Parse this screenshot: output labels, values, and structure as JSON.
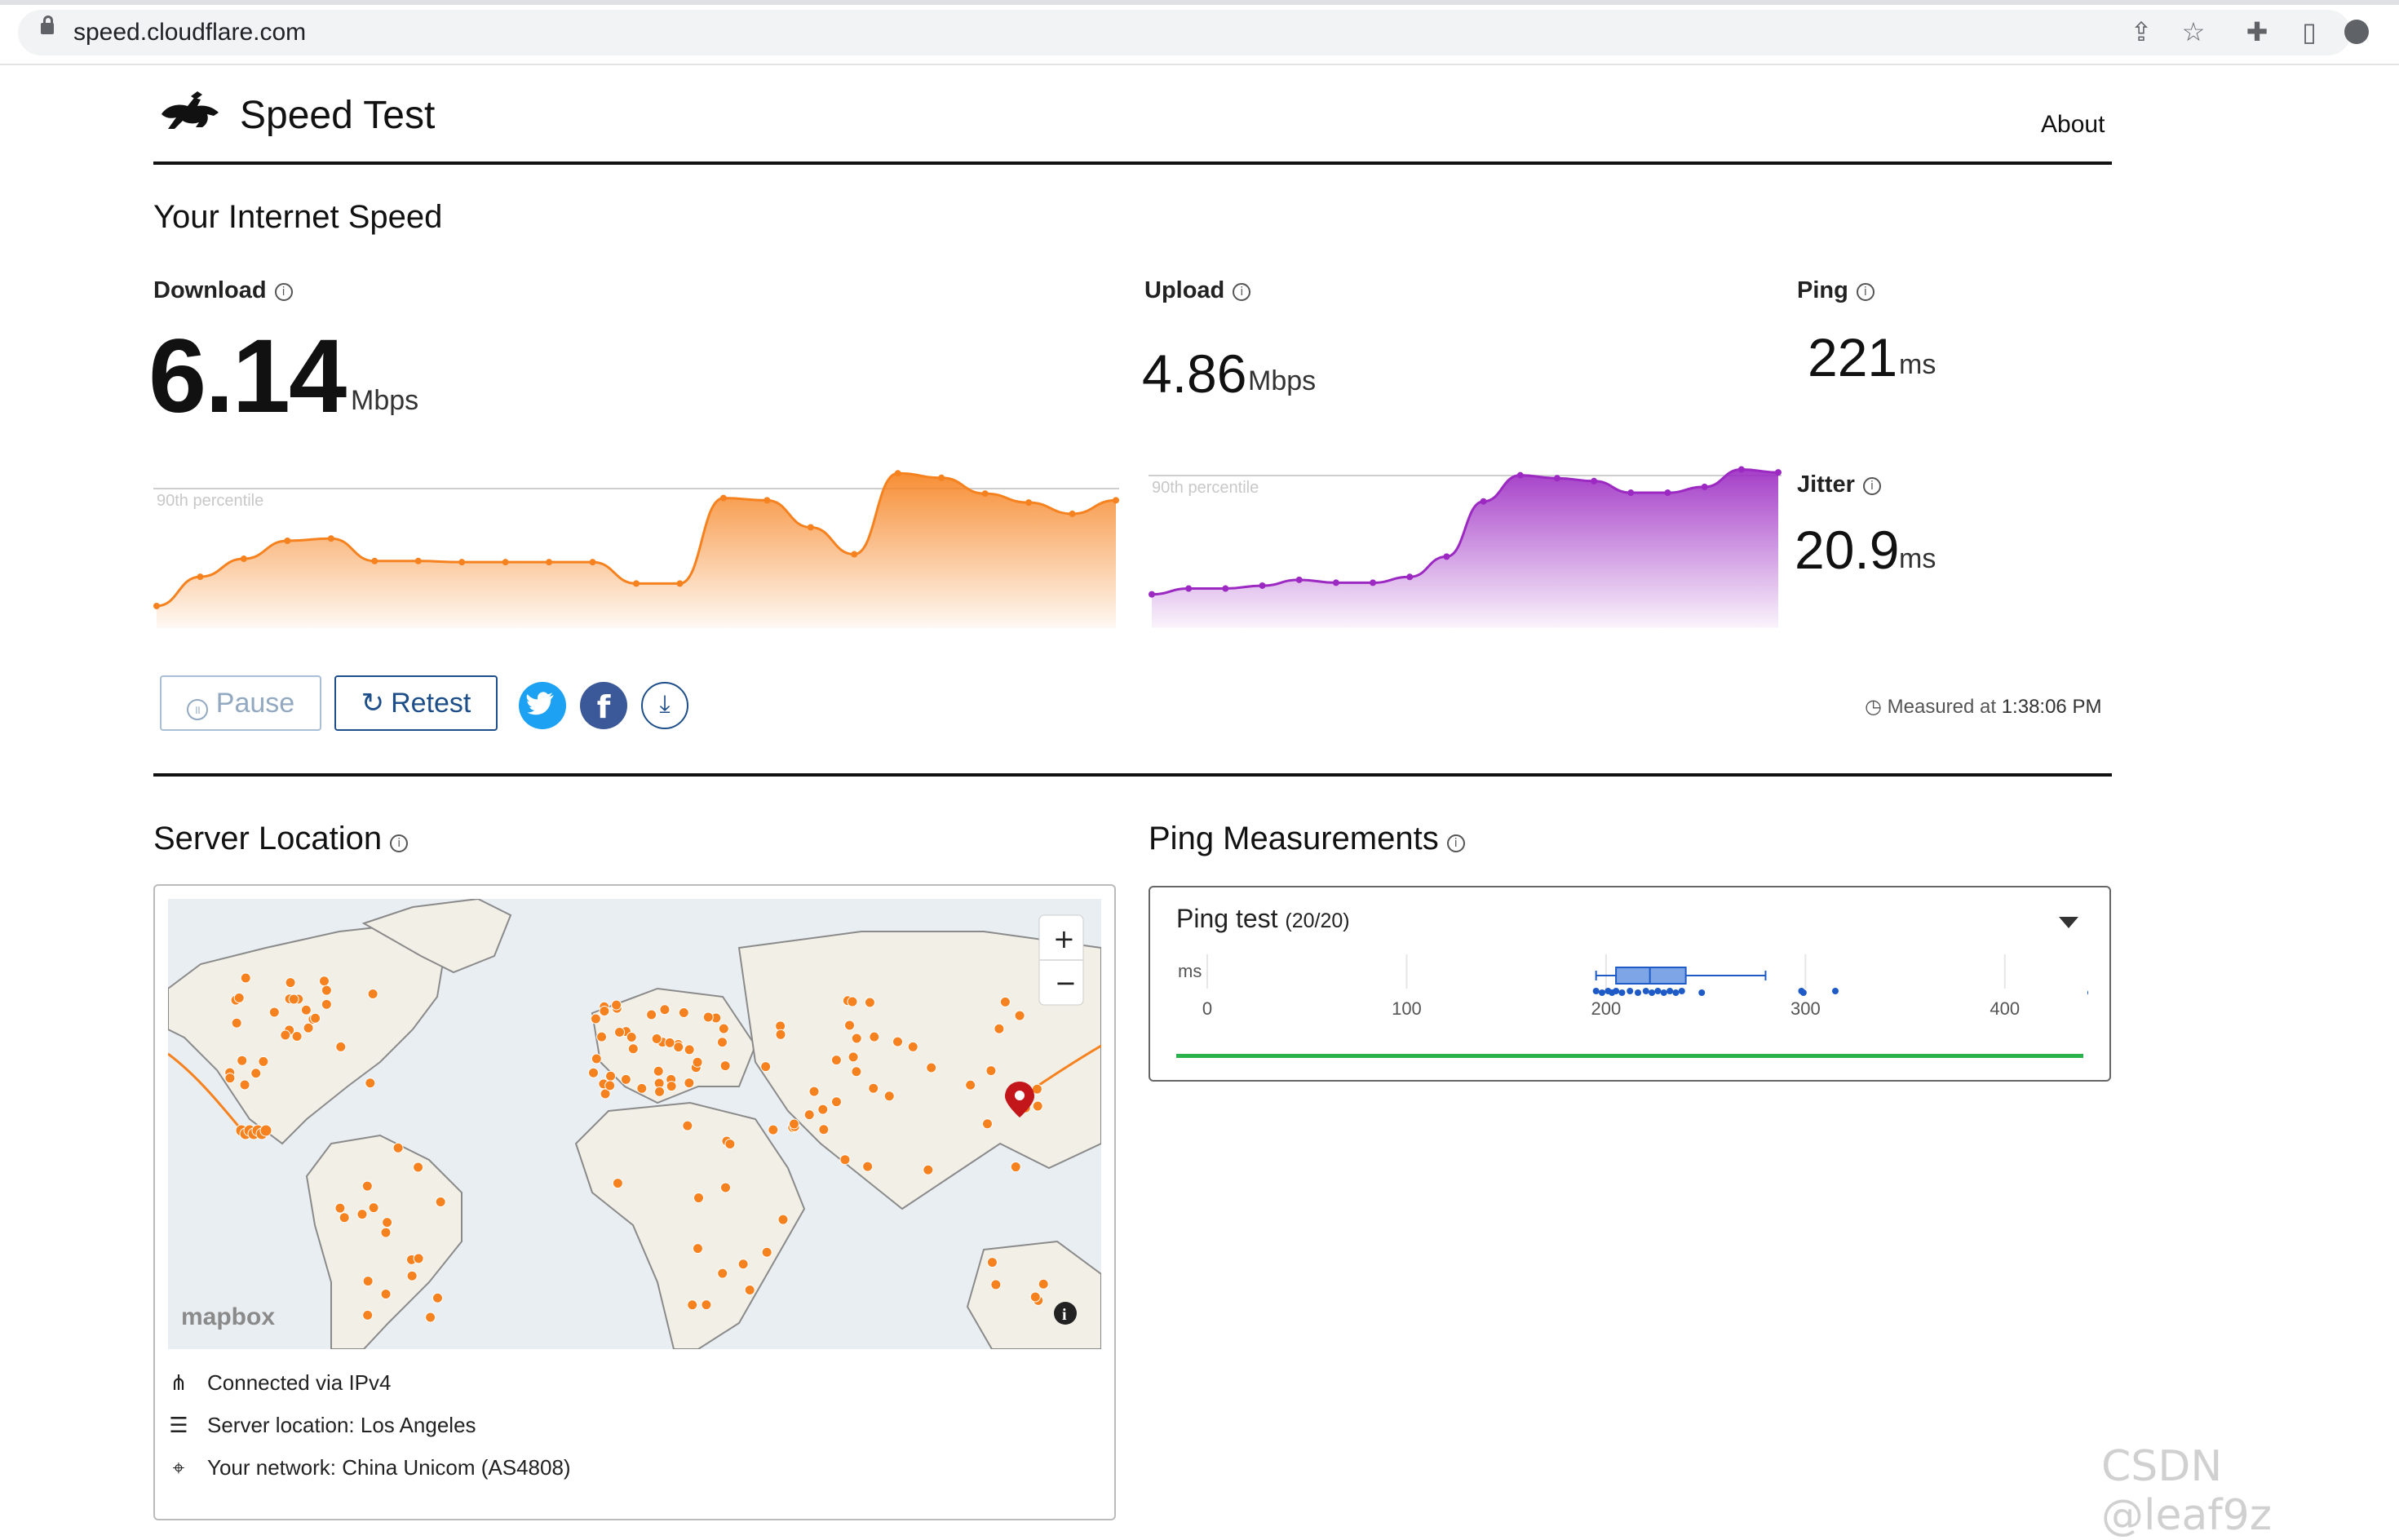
{
  "browser": {
    "url": "speed.cloudflare.com",
    "icons": [
      "share-icon",
      "star-icon",
      "extensions-icon",
      "sidepanel-icon",
      "profile-icon"
    ]
  },
  "header": {
    "title": "Speed Test",
    "about_link": "About"
  },
  "main": {
    "heading": "Your Internet Speed",
    "download": {
      "label": "Download",
      "value": "6.14",
      "unit": "Mbps",
      "percentile_label": "90th percentile"
    },
    "upload": {
      "label": "Upload",
      "value": "4.86",
      "unit": "Mbps",
      "percentile_label": "90th percentile"
    },
    "ping": {
      "label": "Ping",
      "value": "221",
      "unit": "ms"
    },
    "jitter": {
      "label": "Jitter",
      "value": "20.9",
      "unit": "ms"
    },
    "buttons": {
      "pause": "Pause",
      "retest": "Retest"
    },
    "measured": {
      "prefix": "Measured at",
      "time": "1:38:06 PM"
    }
  },
  "server": {
    "heading": "Server Location",
    "map_attribution": "mapbox",
    "connected": "Connected via IPv4",
    "location": "Server location: Los Angeles",
    "network": "Your network: China Unicom (AS4808)"
  },
  "ping_measurements": {
    "heading": "Ping Measurements",
    "test_label": "Ping test",
    "test_count": "(20/20)",
    "axis_unit": "ms",
    "ticks": [
      "0",
      "100",
      "200",
      "300",
      "400"
    ]
  },
  "watermark": "CSDN @leaf9z",
  "colors": {
    "download": "#f6821f",
    "upload": "#9b29c2",
    "ping_dots": "#1e5bc6",
    "progress": "#2bb24c",
    "twitter": "#1da1f2",
    "facebook": "#3b5998",
    "primary": "#1d4e89"
  },
  "chart_data": [
    {
      "type": "area",
      "series": [
        {
          "values": [
            0.8,
            2.1,
            2.9,
            3.7,
            3.8,
            2.8,
            2.8,
            2.75,
            2.75,
            2.75,
            2.75,
            1.8,
            1.8,
            5.6,
            5.5,
            4.3,
            3.1,
            6.7,
            6.5,
            5.8,
            5.4,
            4.9,
            5.5
          ]
        }
      ],
      "x": [
        0,
        1,
        2,
        3,
        4,
        5,
        6,
        7,
        8,
        9,
        10,
        11,
        12,
        13,
        14,
        15,
        16,
        17,
        18,
        19,
        20,
        21,
        22
      ],
      "ylim": [
        0,
        7
      ]
    },
    {
      "type": "area",
      "series": [
        {
          "values": [
            0.6,
            0.8,
            0.8,
            0.9,
            1.1,
            1.0,
            1.0,
            1.2,
            1.9,
            3.8,
            4.7,
            4.6,
            4.5,
            4.1,
            4.1,
            4.3,
            4.9,
            4.8
          ]
        }
      ],
      "x": [
        0,
        1,
        2,
        3,
        4,
        5,
        6,
        7,
        8,
        9,
        10,
        11,
        12,
        13,
        14,
        15,
        16,
        17
      ],
      "ylim": [
        0,
        5
      ]
    },
    {
      "type": "scatter",
      "title": "Ping test",
      "xlabel": "ms",
      "xlim": [
        0,
        450
      ],
      "box": {
        "min": 195,
        "q1": 205,
        "median": 222,
        "q3": 240,
        "max": 280
      },
      "points": [
        195,
        198,
        201,
        203,
        205,
        208,
        212,
        216,
        220,
        223,
        226,
        229,
        232,
        235,
        238,
        248,
        298,
        299,
        315,
        443
      ]
    }
  ]
}
